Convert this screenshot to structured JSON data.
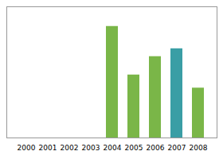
{
  "chart_data": {
    "type": "bar",
    "categories": [
      "2000",
      "2001",
      "2002",
      "2003",
      "2004",
      "2005",
      "2006",
      "2007",
      "2008"
    ],
    "values": [
      0,
      0,
      0,
      0,
      85,
      48,
      62,
      68,
      38
    ],
    "colors": [
      "#7ab648",
      "#7ab648",
      "#7ab648",
      "#7ab648",
      "#7ab648",
      "#7ab648",
      "#7ab648",
      "#3a9ea5",
      "#7ab648"
    ],
    "ylim": [
      0,
      100
    ],
    "grid": false,
    "tick_labels": "x"
  }
}
